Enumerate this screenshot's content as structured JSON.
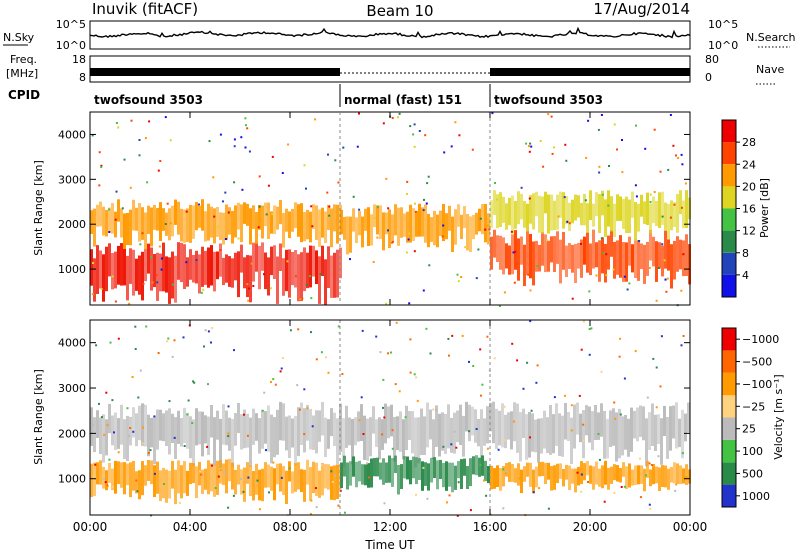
{
  "header": {
    "station": "Inuvik (fitACF)",
    "beam": "Beam 10",
    "date": "17/Aug/2014"
  },
  "nsky": {
    "label": "N.Sky",
    "ticks": [
      "10^5",
      "10^0"
    ],
    "right_label": "N.Search",
    "right_ticks": [
      "10^5",
      "10^0"
    ]
  },
  "freq": {
    "label_line1": "Freq.",
    "label_line2": "[MHz]",
    "ticks": [
      "18",
      "8"
    ],
    "right_label": "Nave",
    "right_ticks": [
      "80",
      "0"
    ]
  },
  "cpid": {
    "label": "CPID",
    "segments": [
      {
        "name": "twofsound",
        "id": "3503",
        "from_hr": 0,
        "to_hr": 10
      },
      {
        "name": "normal (fast)",
        "id": "151",
        "from_hr": 10,
        "to_hr": 16
      },
      {
        "name": "twofsound",
        "id": "3503",
        "from_hr": 16,
        "to_hr": 24
      }
    ]
  },
  "chart_data": [
    {
      "type": "heatmap",
      "title": "",
      "ylabel": "Slant Range [km]",
      "ylim": [
        200,
        4500
      ],
      "yticks": [
        "1000",
        "2000",
        "3000",
        "4000"
      ],
      "xlim": [
        "00:00",
        "24:00"
      ],
      "colorbar": {
        "label": "Power [dB]",
        "ticks": [
          "4",
          "8",
          "12",
          "16",
          "20",
          "24",
          "28"
        ],
        "colors": [
          "#1010e8",
          "#2244bb",
          "#2a8a4a",
          "#44c244",
          "#ddd522",
          "#ff9a00",
          "#ff4400",
          "#ee0000"
        ]
      },
      "bands": [
        {
          "x_hr": [
            0,
            10
          ],
          "range_km": [
            400,
            1400
          ],
          "level": "high",
          "color": "#ee1100"
        },
        {
          "x_hr": [
            0,
            10
          ],
          "range_km": [
            1600,
            2400
          ],
          "level": "mid",
          "color": "#ff9a00"
        },
        {
          "x_hr": [
            10,
            16
          ],
          "range_km": [
            1500,
            2300
          ],
          "level": "mid",
          "color": "#ff9a00"
        },
        {
          "x_hr": [
            16,
            24
          ],
          "range_km": [
            800,
            1700
          ],
          "level": "high",
          "color": "#ff4400"
        },
        {
          "x_hr": [
            16,
            24
          ],
          "range_km": [
            1800,
            2600
          ],
          "level": "mid",
          "color": "#ddd522"
        }
      ]
    },
    {
      "type": "heatmap",
      "title": "",
      "xlabel": "Time UT",
      "ylabel": "Slant Range [km]",
      "ylim": [
        200,
        4500
      ],
      "yticks": [
        "1000",
        "2000",
        "3000",
        "4000"
      ],
      "xticks": [
        "00:00",
        "04:00",
        "08:00",
        "12:00",
        "16:00",
        "20:00",
        "00:00"
      ],
      "colorbar": {
        "label": "Velocity [m s⁻¹]",
        "ticks": [
          "1000",
          "500",
          "100",
          "25",
          "−25",
          "−100",
          "−500",
          "−1000"
        ],
        "colors": [
          "#2233cc",
          "#2a8a4a",
          "#44c244",
          "#bbbbbb",
          "#ffd27f",
          "#ff9a00",
          "#ff6600",
          "#ee0000"
        ]
      },
      "bands": [
        {
          "x_hr": [
            0,
            24
          ],
          "range_km": [
            1500,
            2500
          ],
          "value": "near zero",
          "color": "#bbbbbb"
        },
        {
          "x_hr": [
            0,
            10
          ],
          "range_km": [
            600,
            1300
          ],
          "value": "-100 to -500",
          "color": "#ff9a00"
        },
        {
          "x_hr": [
            10,
            16
          ],
          "range_km": [
            800,
            1400
          ],
          "value": "100 to 1000",
          "color": "#2a8a4a"
        },
        {
          "x_hr": [
            16,
            24
          ],
          "range_km": [
            800,
            1300
          ],
          "value": "-100 to -500",
          "color": "#ff9a00"
        }
      ]
    }
  ]
}
